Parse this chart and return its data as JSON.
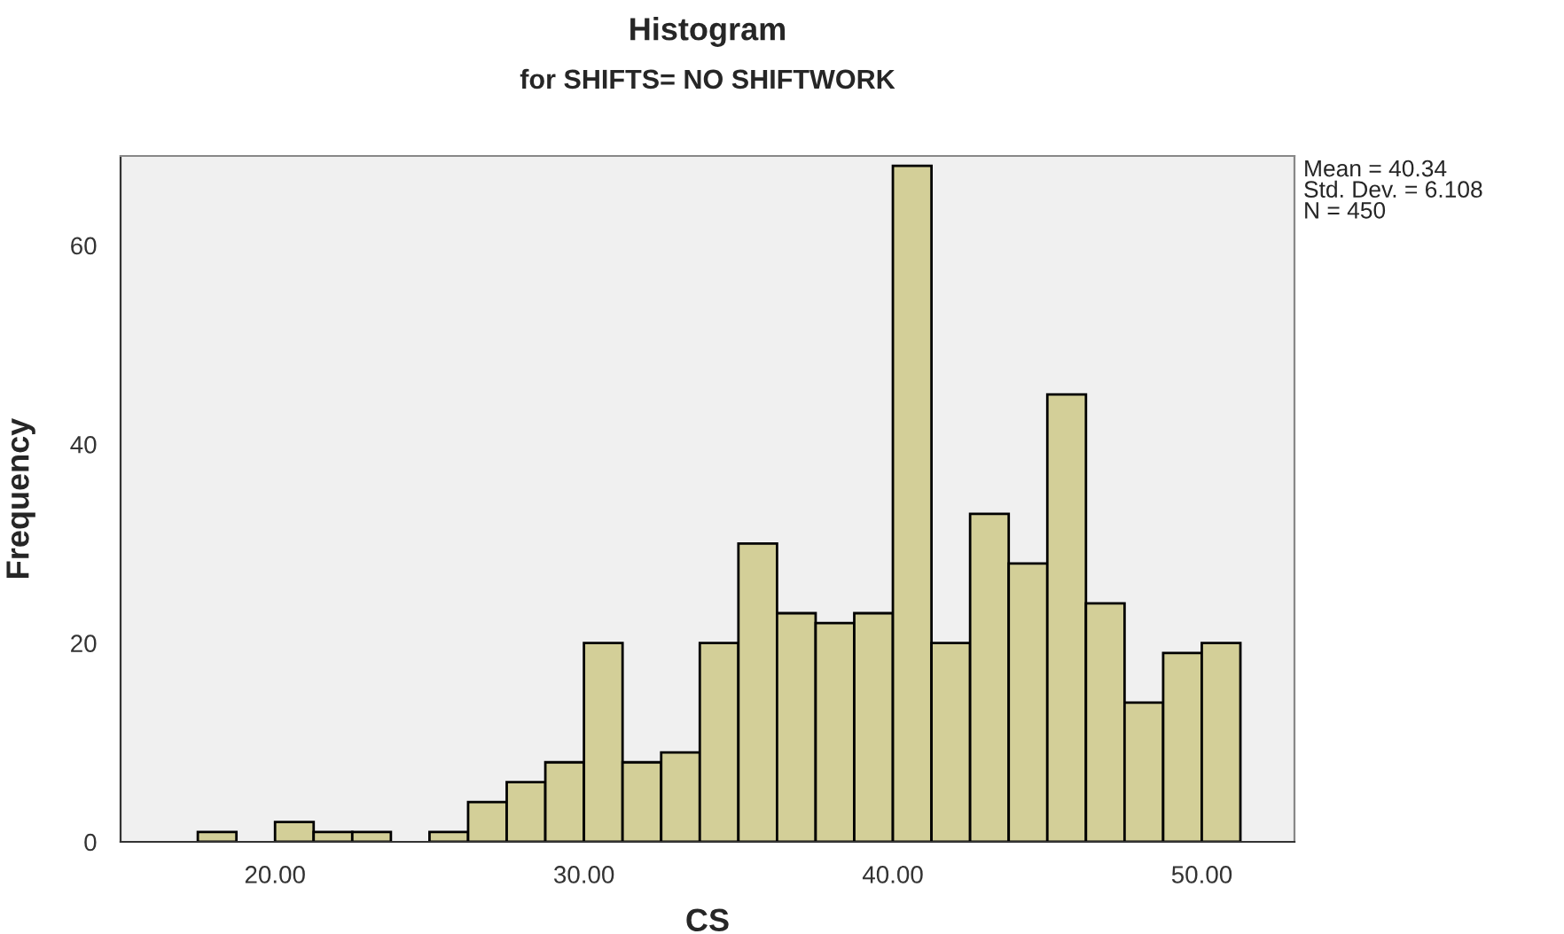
{
  "chart_data": {
    "type": "histogram",
    "title": "Histogram",
    "subtitle": "for SHIFTS= NO SHIFTWORK",
    "xlabel": "CS",
    "ylabel": "Frequency",
    "bins": [
      17.5,
      18.75,
      20,
      21.25,
      22.5,
      23.75,
      25,
      26.25,
      27.5,
      28.75,
      30,
      31.25,
      32.5,
      33.75,
      35,
      36.25,
      37.5,
      38.75,
      40,
      41.25,
      42.5,
      43.75,
      45,
      46.25,
      47.5,
      48.75,
      50,
      51.25
    ],
    "values": [
      1,
      0,
      2,
      1,
      1,
      0,
      1,
      4,
      6,
      8,
      20,
      8,
      9,
      20,
      30,
      23,
      22,
      23,
      68,
      20,
      33,
      28,
      45,
      24,
      14,
      19,
      20
    ],
    "color": "#d3cf98",
    "xlim": [
      15,
      53
    ],
    "ylim": [
      0,
      69
    ],
    "xticks": [
      {
        "value": 20,
        "label": "20.00"
      },
      {
        "value": 30,
        "label": "30.00"
      },
      {
        "value": 40,
        "label": "40.00"
      },
      {
        "value": 50,
        "label": "50.00"
      }
    ],
    "yticks": [
      0,
      20,
      40,
      60
    ],
    "grid": false,
    "annotations": [
      "Mean = 40.34\nStd. Dev. = 6.108\nN = 450"
    ]
  }
}
